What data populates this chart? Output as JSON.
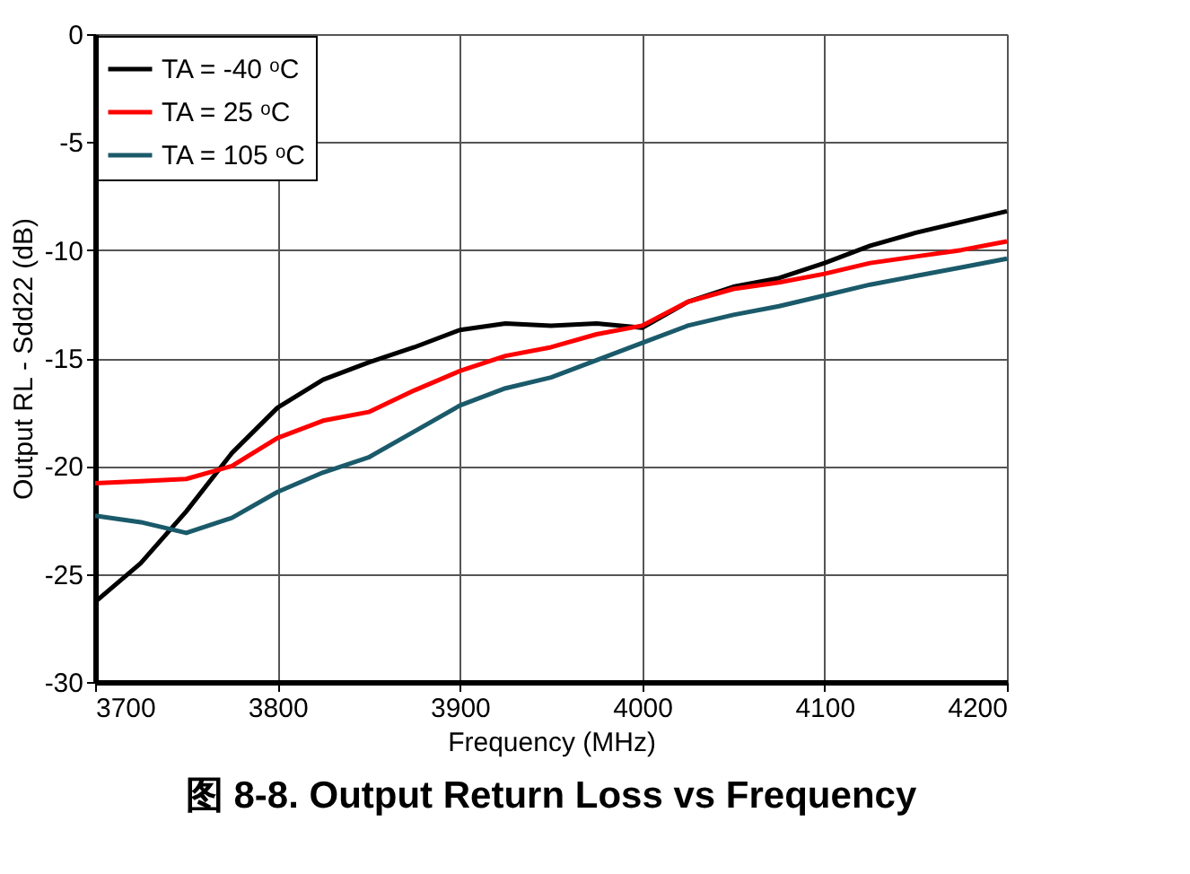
{
  "chart_data": {
    "type": "line",
    "title": "图 8-8. Output Return Loss vs Frequency",
    "xlabel": "Frequency (MHz)",
    "ylabel": "Output RL - Sdd22 (dB)",
    "x": [
      3700,
      3725,
      3750,
      3775,
      3800,
      3825,
      3850,
      3875,
      3900,
      3925,
      3950,
      3975,
      4000,
      4025,
      4050,
      4075,
      4100,
      4125,
      4150,
      4175,
      4200
    ],
    "series": [
      {
        "name": "TA = -40 ᵒC",
        "color": "#000000",
        "values": [
          -26.3,
          -24.5,
          -22.1,
          -19.4,
          -17.3,
          -16.0,
          -15.2,
          -14.5,
          -13.7,
          -13.4,
          -13.5,
          -13.4,
          -13.6,
          -12.4,
          -11.7,
          -11.3,
          -10.6,
          -9.8,
          -9.2,
          -8.7,
          -8.2
        ]
      },
      {
        "name": "TA = 25 ᵒC",
        "color": "#ff0000",
        "values": [
          -20.8,
          -20.7,
          -20.6,
          -20.0,
          -18.7,
          -17.9,
          -17.5,
          -16.5,
          -15.6,
          -14.9,
          -14.5,
          -13.9,
          -13.5,
          -12.4,
          -11.8,
          -11.5,
          -11.1,
          -10.6,
          -10.3,
          -10.0,
          -9.6
        ]
      },
      {
        "name": "TA = 105 ᵒC",
        "color": "#1a5a6a",
        "values": [
          -22.3,
          -22.6,
          -23.1,
          -22.4,
          -21.2,
          -20.3,
          -19.6,
          -18.4,
          -17.2,
          -16.4,
          -15.9,
          -15.1,
          -14.3,
          -13.5,
          -13.0,
          -12.6,
          -12.1,
          -11.6,
          -11.2,
          -10.8,
          -10.4
        ]
      }
    ],
    "xlim": [
      3700,
      4200
    ],
    "xticks": [
      3700,
      3800,
      3900,
      4000,
      4100,
      4200
    ],
    "ylim": [
      -30,
      0
    ],
    "yticks": [
      -30,
      -25,
      -20,
      -15,
      -10,
      -5,
      0
    ],
    "grid": true,
    "legend": "top left",
    "marker": "none",
    "line_style": "solid"
  }
}
